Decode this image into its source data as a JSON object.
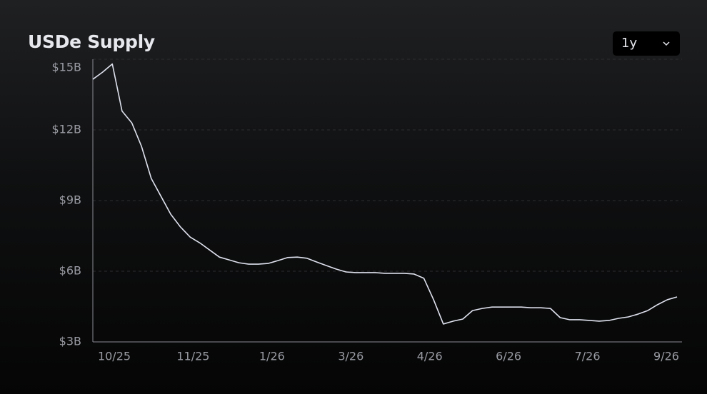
{
  "header": {
    "title": "USDe Supply",
    "range": "1y"
  },
  "chart_data": {
    "type": "line",
    "series": [
      {
        "name": "USDe Supply",
        "color": "#dfe2ee",
        "values": [
          14.15,
          14.45,
          14.8,
          12.8,
          12.3,
          11.3,
          9.94,
          9.18,
          8.42,
          7.88,
          7.45,
          7.2,
          6.9,
          6.6,
          6.48,
          6.36,
          6.3,
          6.3,
          6.33,
          6.45,
          6.58,
          6.6,
          6.55,
          6.39,
          6.24,
          6.09,
          5.97,
          5.94,
          5.94,
          5.94,
          5.91,
          5.91,
          5.91,
          5.88,
          5.7,
          4.79,
          3.76,
          3.88,
          3.97,
          4.33,
          4.42,
          4.48,
          4.48,
          4.48,
          4.48,
          4.45,
          4.45,
          4.42,
          4.03,
          3.94,
          3.94,
          3.91,
          3.88,
          3.91,
          4.0,
          4.06,
          4.18,
          4.33,
          4.58,
          4.79,
          4.91
        ]
      }
    ],
    "xlim": [
      0,
      60
    ],
    "xticks": [
      {
        "value": 2.2,
        "label": "10/25"
      },
      {
        "value": 10.3,
        "label": "11/25"
      },
      {
        "value": 18.4,
        "label": "1/26"
      },
      {
        "value": 26.5,
        "label": "3/26"
      },
      {
        "value": 34.6,
        "label": "4/26"
      },
      {
        "value": 42.7,
        "label": "6/26"
      },
      {
        "value": 50.8,
        "label": "7/26"
      },
      {
        "value": 58.9,
        "label": "9/26"
      }
    ],
    "ylim": [
      3,
      15
    ],
    "yticks": [
      {
        "value": 3,
        "label": "$3B"
      },
      {
        "value": 6,
        "label": "$6B"
      },
      {
        "value": 9,
        "label": "$9B"
      },
      {
        "value": 12,
        "label": "$12B"
      },
      {
        "value": 15,
        "label": "$15B"
      }
    ],
    "grid": true
  }
}
